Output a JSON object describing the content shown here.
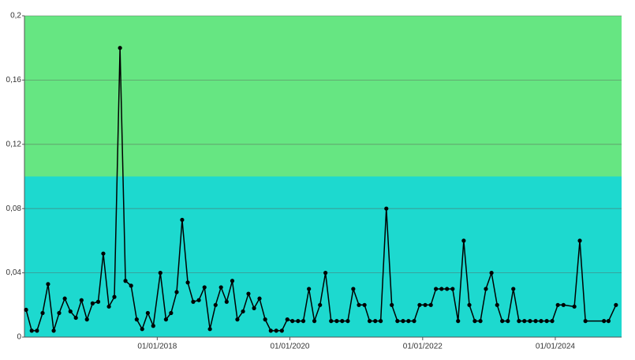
{
  "chart_data": {
    "type": "line",
    "x": [
      "2016-01-10",
      "2016-02-10",
      "2016-03-10",
      "2016-04-10",
      "2016-05-10",
      "2016-06-10",
      "2016-07-10",
      "2016-08-10",
      "2016-09-10",
      "2016-10-10",
      "2016-11-10",
      "2016-12-10",
      "2017-01-10",
      "2017-02-10",
      "2017-03-10",
      "2017-04-10",
      "2017-05-10",
      "2017-06-10",
      "2017-07-10",
      "2017-08-10",
      "2017-09-10",
      "2017-10-10",
      "2017-11-10",
      "2017-12-10",
      "2018-01-18",
      "2018-02-18",
      "2018-03-18",
      "2018-04-18",
      "2018-05-18",
      "2018-06-18",
      "2018-07-18",
      "2018-08-18",
      "2018-09-18",
      "2018-10-18",
      "2018-11-18",
      "2018-12-18",
      "2019-01-18",
      "2019-02-18",
      "2019-03-18",
      "2019-04-18",
      "2019-05-18",
      "2019-06-18",
      "2019-07-18",
      "2019-08-18",
      "2019-09-18",
      "2019-10-18",
      "2019-11-18",
      "2019-12-18",
      "2020-01-15",
      "2020-02-15",
      "2020-03-15",
      "2020-04-15",
      "2020-05-15",
      "2020-06-15",
      "2020-07-15",
      "2020-08-15",
      "2020-09-15",
      "2020-10-15",
      "2020-11-15",
      "2020-12-15",
      "2021-01-15",
      "2021-02-15",
      "2021-03-15",
      "2021-04-15",
      "2021-05-15",
      "2021-06-15",
      "2021-07-15",
      "2021-08-15",
      "2021-09-15",
      "2021-10-15",
      "2021-11-15",
      "2021-12-15",
      "2022-01-15",
      "2022-02-15",
      "2022-03-15",
      "2022-04-15",
      "2022-05-15",
      "2022-06-15",
      "2022-07-15",
      "2022-08-15",
      "2022-09-15",
      "2022-10-15",
      "2022-11-15",
      "2022-12-15",
      "2023-01-15",
      "2023-02-15",
      "2023-03-15",
      "2023-04-15",
      "2023-05-15",
      "2023-06-15",
      "2023-07-15",
      "2023-08-15",
      "2023-09-15",
      "2023-10-15",
      "2023-11-15",
      "2023-12-15",
      "2024-01-15",
      "2024-02-15",
      "2024-04-15",
      "2024-05-15",
      "2024-06-15",
      "2024-09-25",
      "2024-10-20",
      "2024-11-30"
    ],
    "series": [
      {
        "color": "#000000",
        "values": [
          0.017,
          0.004,
          0.004,
          0.015,
          0.033,
          0.004,
          0.015,
          0.024,
          0.016,
          0.012,
          0.023,
          0.011,
          0.021,
          0.022,
          0.052,
          0.019,
          0.025,
          0.18,
          0.035,
          0.032,
          0.011,
          0.005,
          0.015,
          0.007,
          0.04,
          0.011,
          0.015,
          0.028,
          0.073,
          0.034,
          0.022,
          0.023,
          0.031,
          0.005,
          0.02,
          0.031,
          0.022,
          0.035,
          0.011,
          0.016,
          0.027,
          0.018,
          0.024,
          0.011,
          0.004,
          0.004,
          0.004,
          0.011,
          0.01,
          0.01,
          0.01,
          0.03,
          0.01,
          0.02,
          0.04,
          0.01,
          0.01,
          0.01,
          0.01,
          0.03,
          0.02,
          0.02,
          0.01,
          0.01,
          0.01,
          0.08,
          0.02,
          0.01,
          0.01,
          0.01,
          0.01,
          0.02,
          0.02,
          0.02,
          0.03,
          0.03,
          0.03,
          0.03,
          0.01,
          0.06,
          0.02,
          0.01,
          0.01,
          0.03,
          0.04,
          0.02,
          0.01,
          0.01,
          0.03,
          0.01,
          0.01,
          0.01,
          0.01,
          0.01,
          0.01,
          0.01,
          0.02,
          0.02,
          0.019,
          0.06,
          0.01,
          0.01,
          0.01,
          0.02
        ]
      }
    ],
    "xlim": [
      "2016-01-01",
      "2024-12-31"
    ],
    "xticks": [
      {
        "value": "2018-01-01",
        "label": "01/01/2018"
      },
      {
        "value": "2020-01-01",
        "label": "01/01/2020"
      },
      {
        "value": "2022-01-01",
        "label": "01/01/2022"
      },
      {
        "value": "2024-01-01",
        "label": "01/01/2024"
      }
    ],
    "ylim": [
      0,
      0.2
    ],
    "yticks": [
      0,
      {
        "value": 0.04,
        "label": "0,04"
      },
      {
        "value": 0.08,
        "label": "0,08"
      },
      {
        "value": 0.12,
        "label": "0,12"
      },
      {
        "value": 0.16,
        "label": "0,16"
      },
      {
        "value": 0.2,
        "label": "0,2"
      }
    ],
    "bands": [
      {
        "from": 0,
        "to": 0.1,
        "color": "#1dd9cf"
      },
      {
        "from": 0.1,
        "to": 0.2,
        "color": "#66e682"
      }
    ],
    "grid": true
  }
}
